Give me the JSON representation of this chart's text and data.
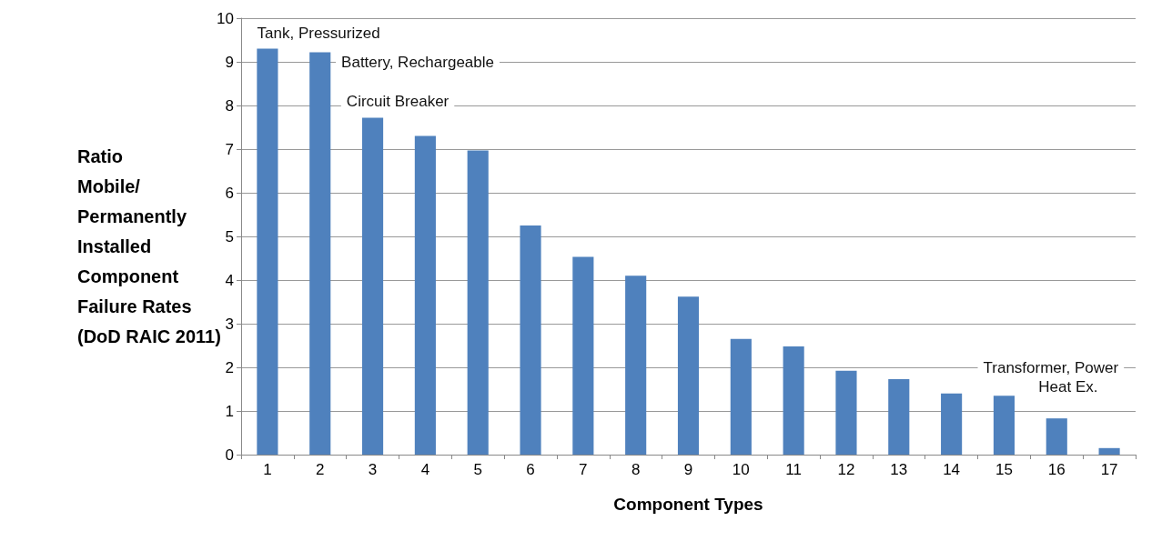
{
  "chart_data": {
    "type": "bar",
    "xlabel": "Component Types",
    "ylabel": "Ratio\nMobile/\nPermanently\nInstalled\nComponent\nFailure Rates\n(DoD RAIC 2011)",
    "categories": [
      "1",
      "2",
      "3",
      "4",
      "5",
      "6",
      "7",
      "8",
      "9",
      "10",
      "11",
      "12",
      "13",
      "14",
      "15",
      "16",
      "17"
    ],
    "values": [
      9.3,
      9.22,
      7.72,
      7.3,
      6.97,
      5.25,
      4.53,
      4.1,
      3.62,
      2.65,
      2.48,
      1.92,
      1.73,
      1.4,
      1.35,
      0.83,
      0.15
    ],
    "color": "#4f81bd",
    "ylim": [
      0,
      10
    ],
    "yticks": [
      0,
      1,
      2,
      3,
      4,
      5,
      6,
      7,
      8,
      9,
      10
    ],
    "grid": "y",
    "annotations": [
      "Tank, Pressurized",
      "Battery, Rechargeable",
      "Circuit Breaker",
      "Transformer, Power",
      "Heat Ex."
    ]
  }
}
